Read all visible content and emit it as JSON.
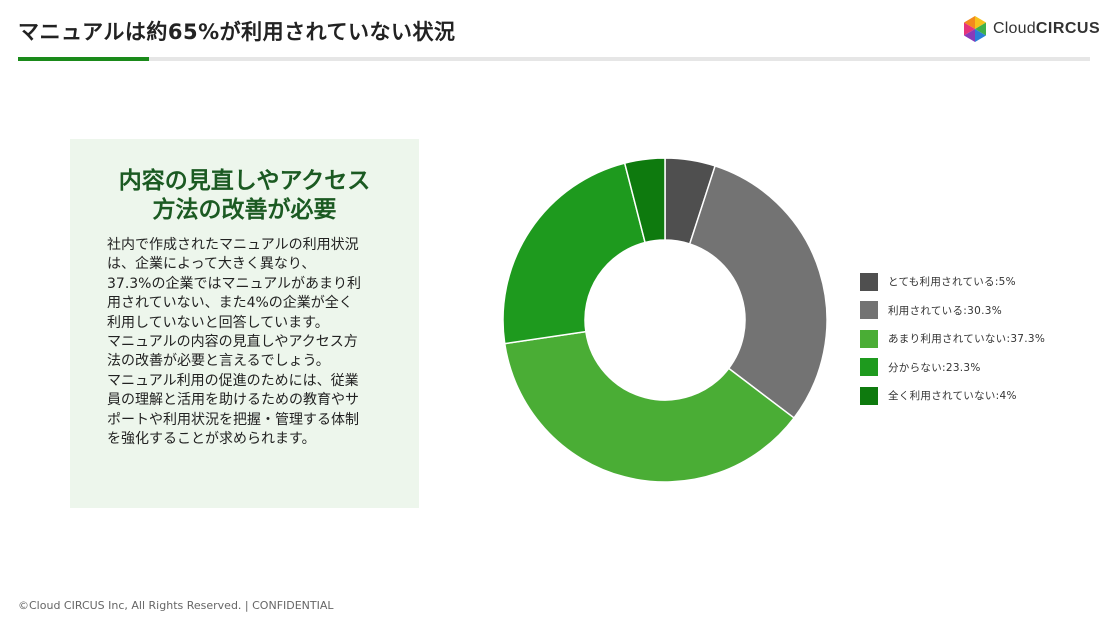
{
  "header": {
    "title": "マニュアルは約65%が利用されていない状況",
    "accent_color": "#1a8a1a",
    "logo_text_light": "Cloud",
    "logo_text_bold": "CIRCUS"
  },
  "card": {
    "heading": "内容の見直しやアクセス\n方法の改善が必要",
    "body": "社内で作成されたマニュアルの利用状況\nは、企業によって大きく異なり、\n37.3%の企業ではマニュアルがあまり利\n用されていない、また4%の企業が全く\n利用していないと回答しています。\nマニュアルの内容の見直しやアクセス方\n法の改善が必要と言えるでしょう。\nマニュアル利用の促進のためには、従業\n員の理解と活用を助けるための教育やサ\nポートや利用状況を把握・管理する体制\nを強化することが求められます。"
  },
  "chart_data": {
    "type": "pie",
    "donut": true,
    "legend_position": "right",
    "slices": [
      {
        "label": "とても利用されている",
        "value": 5,
        "legend_text": "とても利用されている:5%",
        "color": "#4f4f4f"
      },
      {
        "label": "利用されている",
        "value": 30.3,
        "legend_text": "利用されている:30.3%",
        "color": "#737373"
      },
      {
        "label": "あまり利用されていない",
        "value": 37.3,
        "legend_text": "あまり利用されていない:37.3%",
        "color": "#4aad35"
      },
      {
        "label": "分からない",
        "value": 23.3,
        "legend_text": "分からない:23.3%",
        "color": "#1e9a1e"
      },
      {
        "label": "全く利用されていない",
        "value": 4,
        "legend_text": "全く利用されていない:4%",
        "color": "#0e7a0e"
      }
    ]
  },
  "footer": {
    "copyright": "©Cloud CIRCUS Inc, All Rights Reserved. | CONFIDENTIAL"
  }
}
